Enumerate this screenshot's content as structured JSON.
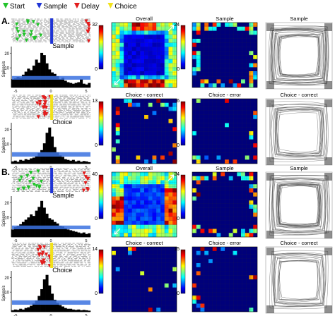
{
  "legend": [
    {
      "label": "Start",
      "color": "#22c32b",
      "shape": "tri-down"
    },
    {
      "label": "Sample",
      "color": "#1f34d6",
      "shape": "tri-down"
    },
    {
      "label": "Delay",
      "color": "#e21d1d",
      "shape": "tri-down"
    },
    {
      "label": "Choice",
      "color": "#f2e21b",
      "shape": "tri-down"
    }
  ],
  "panels": [
    {
      "letter": "A.",
      "rows": [
        {
          "event": "Sample",
          "marker_color": "#1f34d6",
          "marker_side": "green",
          "axis_label": "Spikes/s",
          "y_ticks": [
            "20",
            "10"
          ],
          "x_ticks": [
            "-5",
            "0",
            "5"
          ],
          "baseline_band": 0.1,
          "histogram": [
            0.22,
            0.24,
            0.28,
            0.26,
            0.34,
            0.42,
            0.5,
            0.46,
            0.58,
            0.74,
            0.66,
            0.92,
            0.86,
            0.64,
            0.48,
            0.4,
            0.36,
            0.3,
            0.22,
            0.26,
            0.18,
            0.14,
            0.12,
            0.1,
            0.12,
            0.14,
            0.22,
            0.1,
            0.08,
            0.12
          ],
          "maps": [
            {
              "title": "Overall",
              "scale_max": "32",
              "pattern": "ring_strong"
            },
            {
              "title": "Sample",
              "scale_max": "24",
              "pattern": "ring_sample"
            }
          ],
          "trajectory_title": "Sample"
        },
        {
          "event": "Choice",
          "marker_color": "#f2e21b",
          "marker_side": "red",
          "axis_label": "Spikes/s",
          "y_ticks": [
            "20",
            "10"
          ],
          "x_ticks": [
            "-5",
            "0",
            "5"
          ],
          "baseline_band": 0.12,
          "histogram": [
            0.06,
            0.08,
            0.05,
            0.1,
            0.08,
            0.12,
            0.1,
            0.14,
            0.16,
            0.2,
            0.28,
            0.36,
            0.54,
            0.82,
            0.96,
            0.72,
            0.44,
            0.3,
            0.22,
            0.18,
            0.12,
            0.1,
            0.08,
            0.1,
            0.06,
            0.08,
            0.05,
            0.07,
            0.06,
            0.04
          ],
          "maps": [
            {
              "title": "Choice - correct",
              "scale_max": "13",
              "pattern": "sparse_a"
            },
            {
              "title": "Choice - error",
              "scale_max": "6",
              "pattern": "sparse_b"
            }
          ],
          "trajectory_title": "Choice - correct"
        }
      ]
    },
    {
      "letter": "B.",
      "rows": [
        {
          "event": "Sample",
          "marker_color": "#1f34d6",
          "marker_side": "green",
          "axis_label": "Spikes/s",
          "y_ticks": [
            "20",
            "10"
          ],
          "x_ticks": [
            "-5",
            "0",
            "5"
          ],
          "baseline_band": 0.1,
          "histogram": [
            0.2,
            0.26,
            0.3,
            0.34,
            0.4,
            0.46,
            0.52,
            0.6,
            0.56,
            0.7,
            0.8,
            0.96,
            0.78,
            0.62,
            0.5,
            0.46,
            0.4,
            0.36,
            0.3,
            0.28,
            0.24,
            0.2,
            0.18,
            0.16,
            0.14,
            0.12,
            0.1,
            0.12,
            0.08,
            0.1
          ],
          "maps": [
            {
              "title": "Overall",
              "scale_max": "40",
              "pattern": "ring_broad"
            },
            {
              "title": "Sample",
              "scale_max": "24",
              "pattern": "ring_sparse"
            }
          ],
          "trajectory_title": "Sample"
        },
        {
          "event": "Choice",
          "marker_color": "#f2e21b",
          "marker_side": "red",
          "axis_label": "Spikes/s",
          "y_ticks": [
            "20",
            "10"
          ],
          "x_ticks": [
            "-5",
            "0",
            "5"
          ],
          "baseline_band": 0.12,
          "histogram": [
            0.04,
            0.06,
            0.05,
            0.08,
            0.06,
            0.1,
            0.12,
            0.16,
            0.22,
            0.3,
            0.42,
            0.6,
            0.86,
            0.98,
            0.7,
            0.48,
            0.32,
            0.24,
            0.18,
            0.14,
            0.1,
            0.08,
            0.08,
            0.06,
            0.05,
            0.06,
            0.04,
            0.05,
            0.04,
            0.03
          ],
          "maps": [
            {
              "title": "Choice - correct",
              "scale_max": "14",
              "pattern": "sparse_c"
            },
            {
              "title": "Choice - error",
              "scale_max": "15",
              "pattern": "sparse_d"
            }
          ],
          "trajectory_title": "Choice - correct"
        }
      ]
    }
  ]
}
